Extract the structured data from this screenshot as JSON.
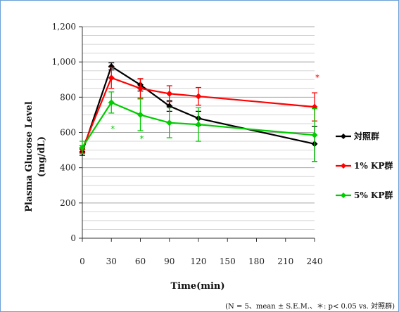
{
  "chart_data": {
    "type": "line",
    "title": "",
    "xlabel": "Time(min)",
    "ylabel": "Plasma Glucose Level\n(mg/dL)",
    "xlim": [
      0,
      240
    ],
    "ylim": [
      0,
      1200
    ],
    "x_ticks": [
      0,
      30,
      60,
      90,
      120,
      150,
      180,
      210,
      240
    ],
    "x_tick_labels": [
      "0",
      "30",
      "60",
      "90",
      "120",
      "150",
      "180",
      "210",
      "240"
    ],
    "y_ticks": [
      0,
      200,
      400,
      600,
      800,
      1000,
      1200
    ],
    "y_tick_labels": [
      "0",
      "200",
      "400",
      "600",
      "800",
      "1,000",
      "1,200"
    ],
    "grid": true,
    "legend_position": "right",
    "series": [
      {
        "name": "対照群",
        "color": "#000000",
        "x": [
          0,
          30,
          60,
          90,
          120,
          240
        ],
        "y": [
          490,
          975,
          870,
          750,
          680,
          535
        ],
        "err": [
          20,
          20,
          35,
          30,
          40,
          100
        ]
      },
      {
        "name": "1% KP群",
        "color": "#ff0000",
        "x": [
          0,
          30,
          60,
          90,
          120,
          240
        ],
        "y": [
          505,
          910,
          850,
          820,
          805,
          745
        ],
        "err": [
          20,
          60,
          55,
          45,
          50,
          80
        ]
      },
      {
        "name": "5% KP群",
        "color": "#00cc00",
        "x": [
          0,
          30,
          60,
          90,
          120,
          240
        ],
        "y": [
          515,
          770,
          700,
          655,
          645,
          585
        ],
        "err": [
          35,
          60,
          90,
          85,
          95,
          150
        ]
      }
    ],
    "significance_markers": [
      {
        "series": "1% KP群",
        "x": 240,
        "y": 910,
        "label": "*"
      },
      {
        "series": "5% KP群",
        "x": 30,
        "y": 620,
        "label": "*"
      },
      {
        "series": "5% KP群",
        "x": 60,
        "y": 565,
        "label": "*"
      }
    ],
    "footnote": "(N = 5、mean ± S.E.M.、＊: p< 0.05 vs. 対照群)"
  }
}
